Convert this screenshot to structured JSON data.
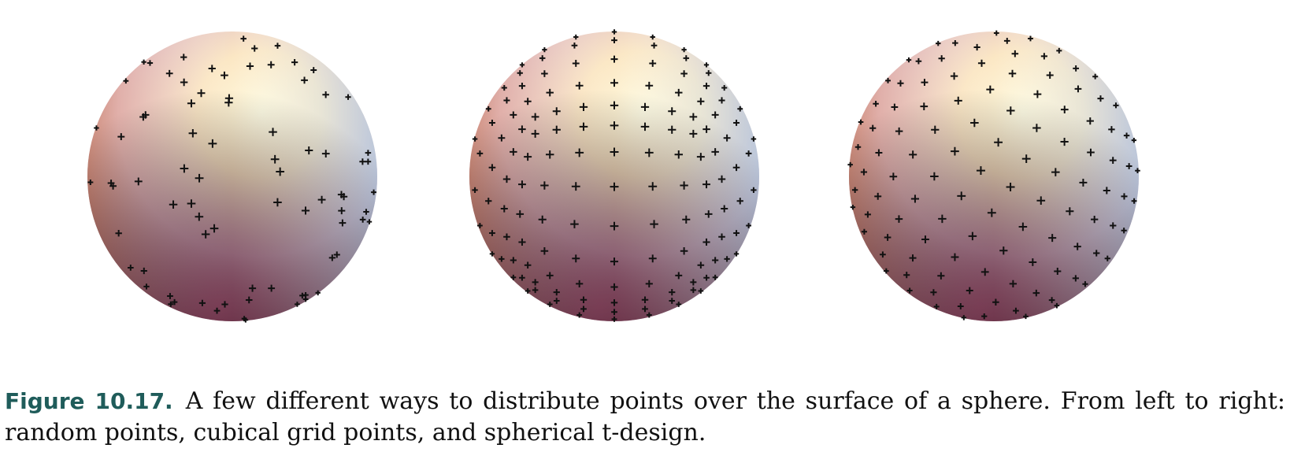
{
  "figure": {
    "panels": [
      {
        "name": "random points",
        "point_style": "random"
      },
      {
        "name": "cubical grid points",
        "point_style": "grid"
      },
      {
        "name": "spherical t-design",
        "point_style": "design"
      }
    ],
    "colors": {
      "highlight": "#fffbe0",
      "warm": "#e59566",
      "cool": "#a9cde6",
      "shadow": "#6d2f47",
      "point": "#111111",
      "label": "#1f5c5a"
    }
  },
  "caption": {
    "label": "Figure 10.17.",
    "text": "A few different ways to distribute points over the surface of a sphere.  From left to right: random points, cubical grid points, and spherical t-design."
  }
}
